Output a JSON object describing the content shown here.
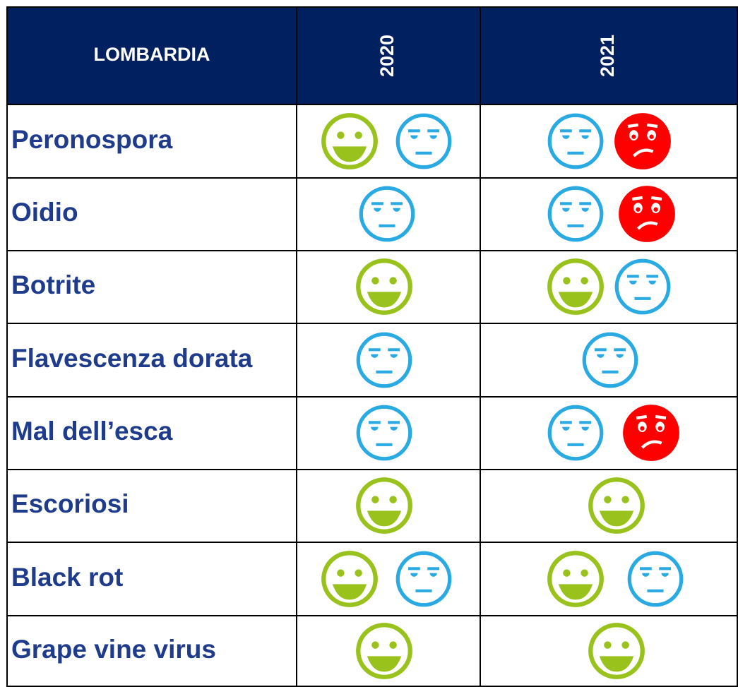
{
  "header": {
    "title": "LOMBARDIA",
    "years": [
      "2020",
      "2021"
    ]
  },
  "rows": [
    "Peronospora",
    "Oidio",
    "Botrite",
    "Flavescenza dorata",
    "Mal dell’esca",
    "Escoriosi",
    "Black rot",
    "Grape vine virus"
  ]
}
